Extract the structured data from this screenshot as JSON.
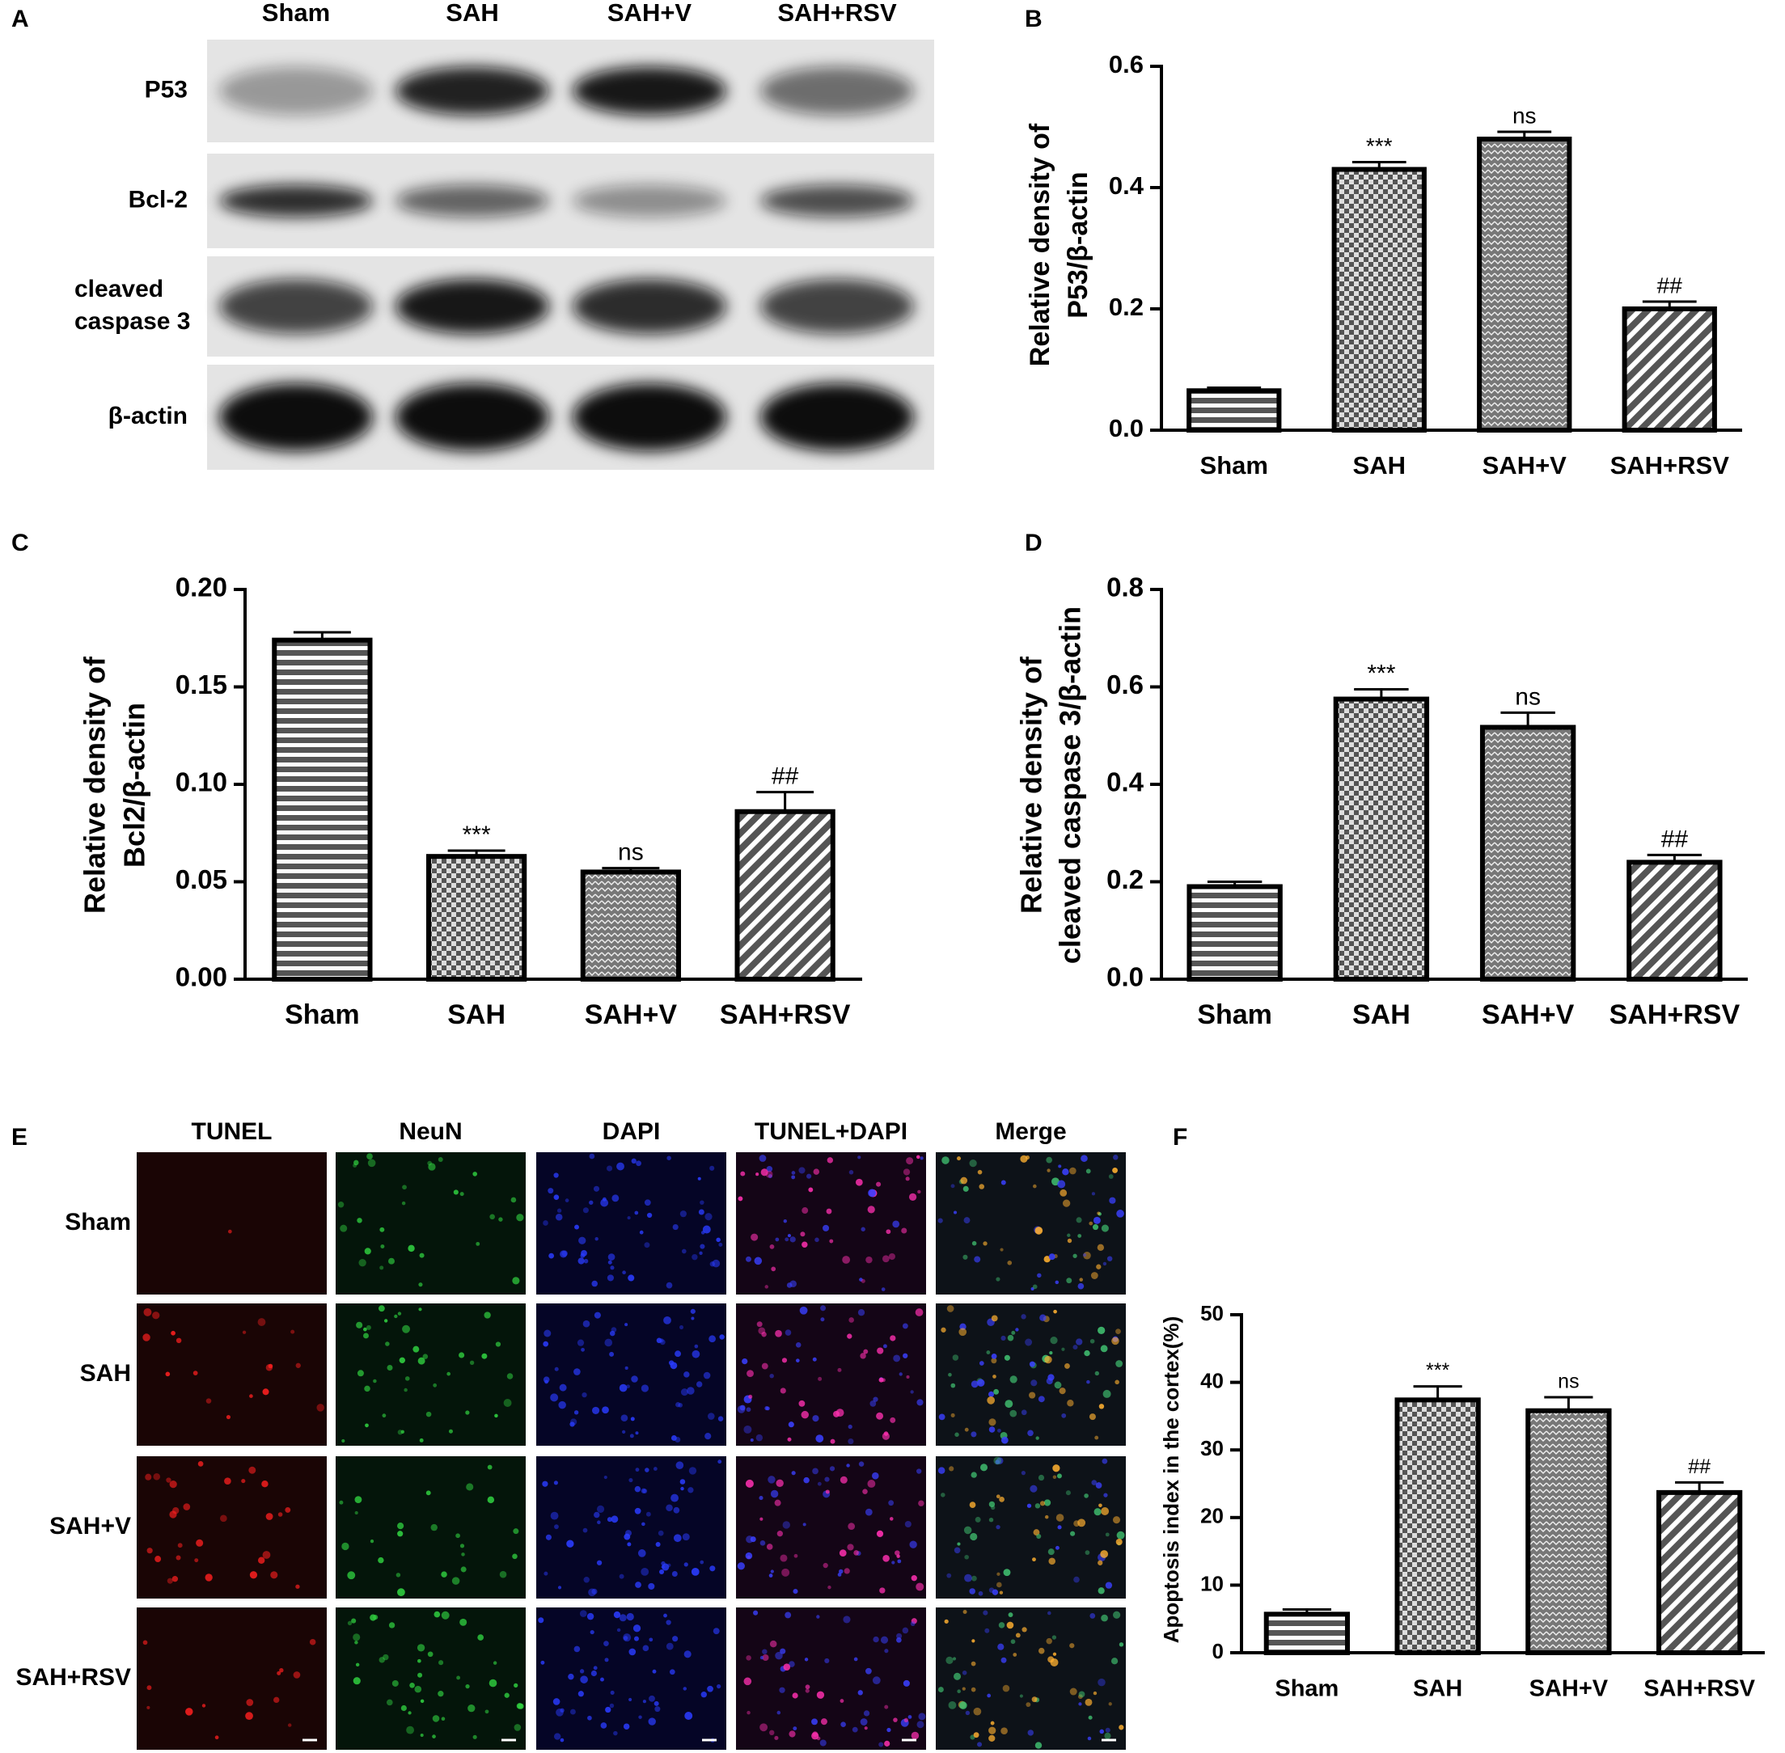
{
  "blot": {
    "label": "A",
    "lanes": [
      "Sham",
      "SAH",
      "SAH+V",
      "SAH+RSV"
    ],
    "rows": [
      [
        "P53"
      ],
      [
        "Bcl-2"
      ],
      [
        "cleaved",
        "caspase 3"
      ],
      [
        "β-actin"
      ]
    ]
  },
  "chart_data": [
    {
      "label": "B",
      "type": "bar",
      "ylabel": [
        "Relative density of",
        "P53/β-actin"
      ],
      "categories": [
        "Sham",
        "SAH",
        "SAH+V",
        "SAH+RSV"
      ],
      "values": [
        0.065,
        0.43,
        0.48,
        0.2
      ],
      "errors": [
        0.005,
        0.012,
        0.012,
        0.012
      ],
      "annotations": [
        null,
        "***",
        "ns",
        "##"
      ],
      "patterns": [
        "horizontal",
        "checker",
        "dots",
        "diagonal"
      ],
      "color": "#555555",
      "ylim": [
        0,
        0.6
      ],
      "yticks": [
        {
          "value": 0,
          "label": "0.0"
        },
        0.2,
        0.4,
        0.6
      ]
    },
    {
      "label": "C",
      "type": "bar",
      "ylabel": [
        "Relative density of",
        "Bcl2/β-actin"
      ],
      "categories": [
        "Sham",
        "SAH",
        "SAH+V",
        "SAH+RSV"
      ],
      "values": [
        0.174,
        0.063,
        0.055,
        0.086
      ],
      "errors": [
        0.004,
        0.003,
        0.002,
        0.01
      ],
      "annotations": [
        null,
        "***",
        "ns",
        "##"
      ],
      "patterns": [
        "horizontal",
        "checker",
        "dots",
        "diagonal"
      ],
      "color": "#555555",
      "ylim": [
        0,
        0.2
      ],
      "yticks": [
        {
          "value": 0,
          "label": "0.00"
        },
        {
          "value": 0.05,
          "label": "0.05"
        },
        {
          "value": 0.1,
          "label": "0.10"
        },
        {
          "value": 0.15,
          "label": "0.15"
        },
        {
          "value": 0.2,
          "label": "0.20"
        }
      ]
    },
    {
      "label": "D",
      "type": "bar",
      "ylabel": [
        "Relative density of",
        "cleaved caspase 3/β-actin"
      ],
      "categories": [
        "Sham",
        "SAH",
        "SAH+V",
        "SAH+RSV"
      ],
      "values": [
        0.19,
        0.575,
        0.517,
        0.24
      ],
      "errors": [
        0.01,
        0.02,
        0.03,
        0.015
      ],
      "annotations": [
        null,
        "***",
        "ns",
        "##"
      ],
      "patterns": [
        "horizontal",
        "checker",
        "dots",
        "diagonal"
      ],
      "color": "#555555",
      "ylim": [
        0,
        0.8
      ],
      "yticks": [
        {
          "value": 0,
          "label": "0.0"
        },
        0.2,
        0.4,
        0.6,
        0.8
      ]
    },
    {
      "label": "F",
      "type": "bar",
      "ylabel": [
        "Apoptosis index in the cortex(%)"
      ],
      "categories": [
        "Sham",
        "SAH",
        "SAH+V",
        "SAH+RSV"
      ],
      "values": [
        5.7,
        37.4,
        35.8,
        23.7
      ],
      "errors": [
        0.7,
        2,
        2,
        1.5
      ],
      "annotations": [
        null,
        "***",
        "ns",
        "##"
      ],
      "patterns": [
        "horizontal",
        "checker",
        "dots",
        "diagonal"
      ],
      "color": "#555555",
      "ylim": [
        0,
        50
      ],
      "yticks": [
        0,
        10,
        20,
        30,
        40,
        50
      ]
    }
  ],
  "microscopy": {
    "label": "E",
    "columns": [
      "TUNEL",
      "NeuN",
      "DAPI",
      "TUNEL+DAPI",
      "Merge"
    ],
    "rows": [
      "Sham",
      "SAH",
      "SAH+V",
      "SAH+RSV"
    ]
  }
}
